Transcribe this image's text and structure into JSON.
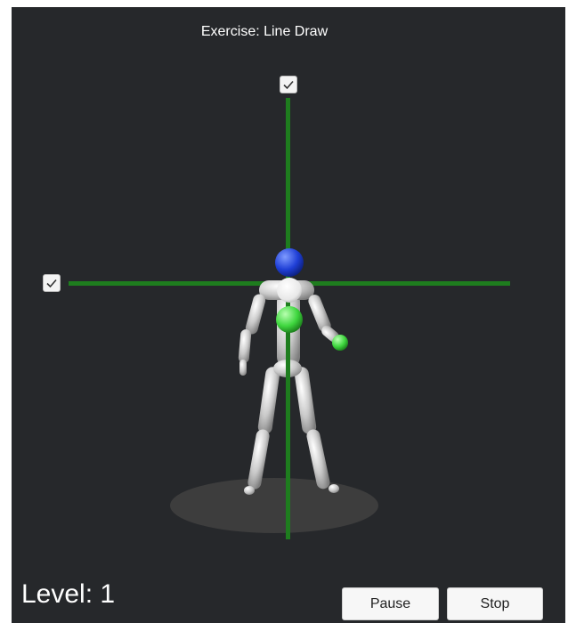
{
  "exercise_title": "Exercise: Line Draw",
  "checkboxes": {
    "vertical_line": {
      "checked": true,
      "icon": "check-icon"
    },
    "horizontal_line": {
      "checked": true,
      "icon": "check-icon"
    }
  },
  "colors": {
    "background": "#26282b",
    "guide_line": "#1e7d1e",
    "head_marker": "#1f3fd6",
    "body_marker": "#3ed63e",
    "avatar": "#d9d9d9"
  },
  "level": {
    "text": "Level: 1"
  },
  "controls": {
    "pause_label": "Pause",
    "stop_label": "Stop"
  }
}
